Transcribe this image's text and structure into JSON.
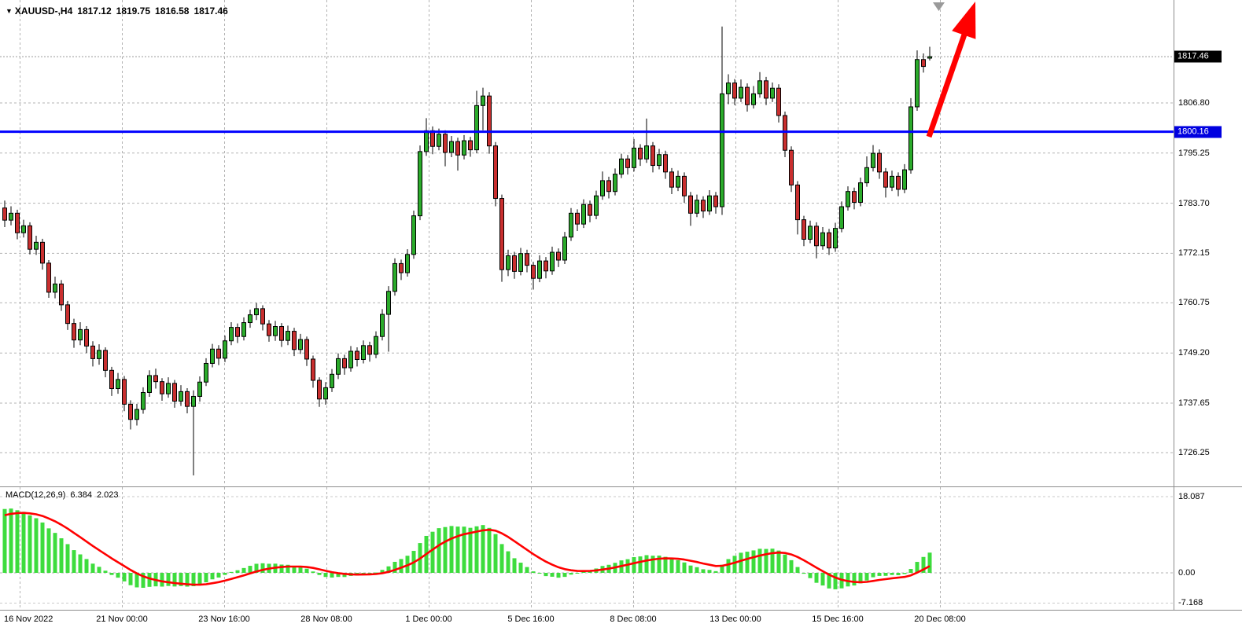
{
  "header": {
    "symbol": "XAUUSD-,H4",
    "open": "1817.12",
    "high": "1819.75",
    "low": "1816.58",
    "close": "1817.46"
  },
  "price_axis": {
    "ticks": [
      "1806.80",
      "1795.25",
      "1783.70",
      "1772.15",
      "1760.75",
      "1749.20",
      "1737.65",
      "1726.25"
    ],
    "current_badge": {
      "text": "1817.46",
      "bg": "#000000",
      "fg": "#ffffff"
    },
    "hline_badge": {
      "text": "1800.16",
      "bg": "#0000e0",
      "fg": "#ffffff"
    }
  },
  "macd": {
    "label": "MACD(12,26,9)",
    "value_main": "6.384",
    "value_signal": "2.023",
    "axis_ticks": [
      "18.087",
      "0.00",
      "-7.168"
    ]
  },
  "time_axis": {
    "labels": [
      "16 Nov 2022",
      "21 Nov 00:00",
      "23 Nov 16:00",
      "28 Nov 08:00",
      "1 Dec 00:00",
      "5 Dec 16:00",
      "8 Dec 08:00",
      "13 Dec 00:00",
      "15 Dec 16:00",
      "20 Dec 08:00"
    ]
  },
  "colors": {
    "bull": "#2bab2b",
    "bear": "#c92f2f",
    "wick": "#000000",
    "grid": "#b3b3b3",
    "hline": "#0000ff",
    "arrow": "#ff0000",
    "macd_bar": "#3ddc3d",
    "macd_signal": "#ff0000",
    "badge_black": "#000000",
    "badge_blue": "#0000e0"
  },
  "chart_data": [
    {
      "type": "candlestick",
      "symbol": "XAUUSD-",
      "timeframe": "H4",
      "title": "XAUUSD-,H4",
      "current_price": 1817.46,
      "current_candle": {
        "open": 1817.12,
        "high": 1819.75,
        "low": 1816.58,
        "close": 1817.46
      },
      "hline": 1800.16,
      "y_ticks": [
        1817.46,
        1806.8,
        1800.16,
        1795.25,
        1783.7,
        1772.15,
        1760.75,
        1749.2,
        1737.65,
        1726.25
      ],
      "ylim": [
        1721,
        1826
      ],
      "x_labels": [
        "16 Nov 2022",
        "21 Nov 00:00",
        "23 Nov 16:00",
        "28 Nov 08:00",
        "1 Dec 00:00",
        "5 Dec 16:00",
        "8 Dec 08:00",
        "13 Dec 00:00",
        "15 Dec 16:00",
        "20 Dec 08:00"
      ],
      "grid": "dashed",
      "annotations": [
        {
          "kind": "horizontal-line",
          "price": 1800.16,
          "color": "#0000ff"
        },
        {
          "kind": "up-arrow",
          "color": "#ff0000",
          "from_price": 1800.16,
          "note": "thick red arrow from blue line near last candle pointing to upper-right past chart top"
        },
        {
          "kind": "gray-down-arrow",
          "color": "#9a9a9a",
          "note": "small gray marker at top near arrow"
        }
      ],
      "candles": [
        [
          1782.6,
          1784.3,
          1778.2,
          1779.8
        ],
        [
          1779.8,
          1783.0,
          1778.6,
          1781.4
        ],
        [
          1781.4,
          1782.2,
          1775.4,
          1776.9
        ],
        [
          1776.9,
          1779.9,
          1775.8,
          1778.5
        ],
        [
          1778.5,
          1779.3,
          1771.9,
          1773.1
        ],
        [
          1773.1,
          1776.2,
          1771.8,
          1774.7
        ],
        [
          1774.7,
          1775.5,
          1768.4,
          1769.9
        ],
        [
          1769.9,
          1770.6,
          1761.9,
          1763.2
        ],
        [
          1763.2,
          1766.8,
          1761.8,
          1765.1
        ],
        [
          1765.1,
          1766.0,
          1758.9,
          1760.3
        ],
        [
          1760.3,
          1761.2,
          1754.5,
          1756.0
        ],
        [
          1756.0,
          1757.1,
          1750.4,
          1752.2
        ],
        [
          1752.2,
          1756.3,
          1751.0,
          1754.6
        ],
        [
          1754.6,
          1755.4,
          1749.2,
          1750.8
        ],
        [
          1750.8,
          1751.9,
          1746.1,
          1747.9
        ],
        [
          1747.9,
          1751.2,
          1746.5,
          1749.8
        ],
        [
          1749.8,
          1750.5,
          1743.6,
          1745.2
        ],
        [
          1745.2,
          1746.0,
          1739.3,
          1741.0
        ],
        [
          1741.0,
          1744.6,
          1739.8,
          1743.1
        ],
        [
          1743.1,
          1743.9,
          1735.8,
          1737.4
        ],
        [
          1737.4,
          1738.3,
          1731.6,
          1733.9
        ],
        [
          1733.9,
          1737.5,
          1732.5,
          1736.2
        ],
        [
          1736.2,
          1741.3,
          1735.2,
          1740.1
        ],
        [
          1740.1,
          1745.2,
          1739.1,
          1744.0
        ],
        [
          1744.0,
          1745.6,
          1741.0,
          1742.6
        ],
        [
          1742.6,
          1743.4,
          1738.2,
          1739.8
        ],
        [
          1739.8,
          1743.6,
          1738.9,
          1742.2
        ],
        [
          1742.2,
          1743.0,
          1736.6,
          1738.1
        ],
        [
          1738.1,
          1741.8,
          1737.0,
          1740.3
        ],
        [
          1740.3,
          1741.1,
          1735.3,
          1736.9
        ],
        [
          1736.9,
          1740.6,
          1721.0,
          1739.2
        ],
        [
          1739.2,
          1743.8,
          1738.0,
          1742.5
        ],
        [
          1742.5,
          1748.0,
          1741.6,
          1746.8
        ],
        [
          1746.8,
          1751.3,
          1745.9,
          1750.1
        ],
        [
          1750.1,
          1751.0,
          1746.4,
          1748.0
        ],
        [
          1748.0,
          1753.2,
          1747.1,
          1752.0
        ],
        [
          1752.0,
          1756.3,
          1751.0,
          1755.1
        ],
        [
          1755.1,
          1756.0,
          1751.5,
          1753.0
        ],
        [
          1753.0,
          1757.4,
          1752.1,
          1756.2
        ],
        [
          1756.2,
          1759.2,
          1755.0,
          1758.0
        ],
        [
          1758.0,
          1760.7,
          1756.8,
          1759.4
        ],
        [
          1759.4,
          1760.2,
          1754.4,
          1755.9
        ],
        [
          1755.9,
          1756.8,
          1751.8,
          1753.2
        ],
        [
          1753.2,
          1756.6,
          1752.0,
          1755.3
        ],
        [
          1755.3,
          1756.1,
          1750.6,
          1752.1
        ],
        [
          1752.1,
          1755.5,
          1751.0,
          1754.2
        ],
        [
          1754.2,
          1755.0,
          1748.5,
          1750.0
        ],
        [
          1750.0,
          1753.6,
          1749.0,
          1752.3
        ],
        [
          1752.3,
          1753.0,
          1746.2,
          1747.8
        ],
        [
          1747.8,
          1748.6,
          1741.2,
          1742.9
        ],
        [
          1742.9,
          1743.6,
          1736.8,
          1738.6
        ],
        [
          1738.6,
          1742.5,
          1737.3,
          1741.2
        ],
        [
          1741.2,
          1745.5,
          1740.2,
          1744.3
        ],
        [
          1744.3,
          1749.1,
          1743.2,
          1747.9
        ],
        [
          1747.9,
          1748.8,
          1744.2,
          1745.8
        ],
        [
          1745.8,
          1750.8,
          1744.9,
          1749.6
        ],
        [
          1749.6,
          1750.5,
          1746.1,
          1747.7
        ],
        [
          1747.7,
          1752.1,
          1746.8,
          1750.9
        ],
        [
          1750.9,
          1751.8,
          1747.2,
          1748.9
        ],
        [
          1748.9,
          1754.2,
          1748.0,
          1753.0
        ],
        [
          1753.0,
          1759.3,
          1752.1,
          1758.1
        ],
        [
          1758.1,
          1764.6,
          1749.5,
          1763.4
        ],
        [
          1763.4,
          1771.0,
          1762.4,
          1769.8
        ],
        [
          1769.8,
          1770.7,
          1766.0,
          1767.7
        ],
        [
          1767.7,
          1773.1,
          1766.8,
          1771.9
        ],
        [
          1771.9,
          1782.0,
          1770.9,
          1780.8
        ],
        [
          1780.8,
          1797.0,
          1779.8,
          1795.6
        ],
        [
          1795.6,
          1803.3,
          1794.6,
          1800.4
        ],
        [
          1800.4,
          1801.4,
          1795.0,
          1796.8
        ],
        [
          1796.8,
          1800.9,
          1795.9,
          1799.6
        ],
        [
          1799.6,
          1800.5,
          1792.2,
          1795.4
        ],
        [
          1795.4,
          1799.2,
          1794.3,
          1797.9
        ],
        [
          1797.9,
          1798.8,
          1791.2,
          1794.8
        ],
        [
          1794.8,
          1799.4,
          1793.8,
          1798.1
        ],
        [
          1798.1,
          1799.0,
          1794.4,
          1796.0
        ],
        [
          1796.0,
          1809.6,
          1795.2,
          1806.2
        ],
        [
          1806.2,
          1810.3,
          1800.5,
          1808.4
        ],
        [
          1808.4,
          1809.3,
          1795.1,
          1796.9
        ],
        [
          1796.9,
          1797.8,
          1783.0,
          1784.8
        ],
        [
          1784.8,
          1785.7,
          1765.6,
          1768.4
        ],
        [
          1768.4,
          1773.0,
          1766.9,
          1771.6
        ],
        [
          1771.6,
          1772.5,
          1766.3,
          1768.0
        ],
        [
          1768.0,
          1773.4,
          1767.1,
          1772.1
        ],
        [
          1772.1,
          1773.0,
          1767.8,
          1769.4
        ],
        [
          1769.4,
          1770.2,
          1763.8,
          1766.4
        ],
        [
          1766.4,
          1771.7,
          1765.5,
          1770.4
        ],
        [
          1770.4,
          1771.3,
          1766.4,
          1768.1
        ],
        [
          1768.1,
          1773.7,
          1767.2,
          1772.4
        ],
        [
          1772.4,
          1773.3,
          1769.0,
          1770.6
        ],
        [
          1770.6,
          1777.1,
          1769.7,
          1775.9
        ],
        [
          1775.9,
          1782.6,
          1775.0,
          1781.4
        ],
        [
          1781.4,
          1782.3,
          1777.3,
          1778.9
        ],
        [
          1778.9,
          1784.6,
          1778.0,
          1783.4
        ],
        [
          1783.4,
          1784.3,
          1779.3,
          1780.9
        ],
        [
          1780.9,
          1786.6,
          1780.0,
          1785.4
        ],
        [
          1785.4,
          1791.0,
          1784.5,
          1788.9
        ],
        [
          1788.9,
          1789.8,
          1784.8,
          1786.4
        ],
        [
          1786.4,
          1791.7,
          1785.5,
          1790.4
        ],
        [
          1790.4,
          1795.1,
          1789.5,
          1793.9
        ],
        [
          1793.9,
          1794.8,
          1790.3,
          1791.9
        ],
        [
          1791.9,
          1798.5,
          1791.0,
          1796.4
        ],
        [
          1796.4,
          1797.3,
          1792.3,
          1793.9
        ],
        [
          1793.9,
          1803.2,
          1793.0,
          1796.9
        ],
        [
          1796.9,
          1797.8,
          1790.8,
          1792.4
        ],
        [
          1792.4,
          1796.2,
          1791.5,
          1794.9
        ],
        [
          1794.9,
          1795.8,
          1789.3,
          1790.9
        ],
        [
          1790.9,
          1791.8,
          1785.8,
          1787.4
        ],
        [
          1787.4,
          1791.2,
          1786.5,
          1789.9
        ],
        [
          1789.9,
          1790.8,
          1783.8,
          1785.4
        ],
        [
          1785.4,
          1786.3,
          1778.5,
          1781.4
        ],
        [
          1781.4,
          1785.7,
          1780.5,
          1784.4
        ],
        [
          1784.4,
          1785.3,
          1780.3,
          1781.9
        ],
        [
          1781.9,
          1786.7,
          1781.0,
          1785.4
        ],
        [
          1785.4,
          1786.3,
          1781.3,
          1782.9
        ],
        [
          1782.9,
          1824.4,
          1781.0,
          1808.9
        ],
        [
          1808.9,
          1813.4,
          1806.5,
          1811.4
        ],
        [
          1811.4,
          1812.3,
          1806.3,
          1807.9
        ],
        [
          1807.9,
          1812.2,
          1807.0,
          1810.4
        ],
        [
          1810.4,
          1811.3,
          1804.8,
          1806.4
        ],
        [
          1806.4,
          1810.7,
          1805.5,
          1808.9
        ],
        [
          1808.9,
          1813.9,
          1808.0,
          1811.9
        ],
        [
          1811.9,
          1812.8,
          1806.3,
          1807.9
        ],
        [
          1807.9,
          1811.5,
          1807.0,
          1810.2
        ],
        [
          1810.2,
          1811.1,
          1802.3,
          1803.9
        ],
        [
          1803.9,
          1804.8,
          1794.3,
          1795.9
        ],
        [
          1795.9,
          1796.8,
          1786.3,
          1787.9
        ],
        [
          1787.9,
          1788.8,
          1776.5,
          1779.9
        ],
        [
          1779.9,
          1780.8,
          1773.8,
          1775.4
        ],
        [
          1775.4,
          1779.7,
          1774.5,
          1778.4
        ],
        [
          1778.4,
          1779.3,
          1771.0,
          1773.9
        ],
        [
          1773.9,
          1778.2,
          1773.0,
          1776.9
        ],
        [
          1776.9,
          1777.8,
          1771.8,
          1773.4
        ],
        [
          1773.4,
          1779.2,
          1772.5,
          1777.9
        ],
        [
          1777.9,
          1784.1,
          1777.0,
          1782.9
        ],
        [
          1782.9,
          1787.6,
          1782.0,
          1786.4
        ],
        [
          1786.4,
          1787.3,
          1782.3,
          1783.9
        ],
        [
          1783.9,
          1789.6,
          1783.0,
          1788.4
        ],
        [
          1788.4,
          1794.5,
          1787.5,
          1791.9
        ],
        [
          1791.9,
          1797.1,
          1791.0,
          1795.2
        ],
        [
          1795.2,
          1796.1,
          1789.3,
          1790.9
        ],
        [
          1790.9,
          1791.8,
          1785.0,
          1787.4
        ],
        [
          1787.4,
          1791.2,
          1786.5,
          1789.9
        ],
        [
          1789.9,
          1790.8,
          1785.3,
          1786.9
        ],
        [
          1786.9,
          1792.7,
          1786.0,
          1791.4
        ],
        [
          1791.4,
          1807.9,
          1790.5,
          1805.9
        ],
        [
          1805.9,
          1818.9,
          1805.0,
          1816.8
        ],
        [
          1816.8,
          1818.2,
          1813.8,
          1815.2
        ],
        [
          1817.12,
          1819.75,
          1816.58,
          1817.46
        ]
      ]
    },
    {
      "type": "bar",
      "name": "MACD(12,26,9)",
      "subtype": "macd-histogram-with-signal-line",
      "displayed_values": {
        "main": 6.384,
        "signal": 2.023
      },
      "y_ticks": [
        18.087,
        0.0,
        -7.168
      ],
      "legend_position": "top-left",
      "note": "green histogram = MACD main (EMA12-EMA26 of candle closes), red line = signal; derived from candles in chart_data[0]"
    }
  ]
}
